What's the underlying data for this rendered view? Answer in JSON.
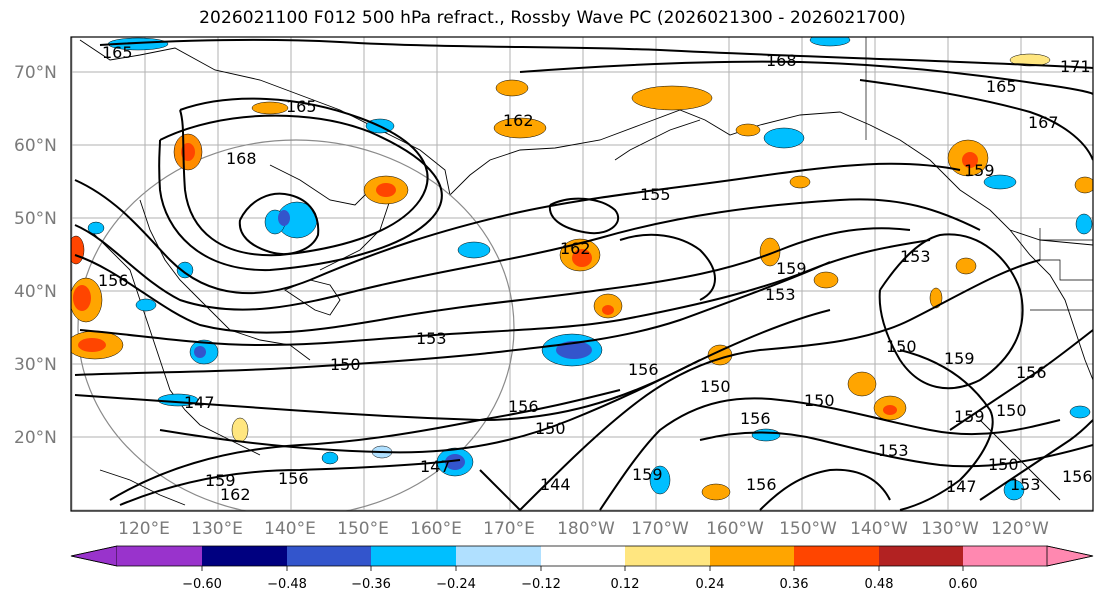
{
  "title": "2026021100 F012 500 hPa refract., Rossby Wave PC (2026021300 - 2026021700)",
  "map": {
    "lat_labels": [
      "70°N",
      "60°N",
      "50°N",
      "40°N",
      "30°N",
      "20°N"
    ],
    "lon_labels": [
      "120°E",
      "130°E",
      "140°E",
      "150°E",
      "160°E",
      "170°E",
      "180°W",
      "170°W",
      "160°W",
      "150°W",
      "140°W",
      "130°W",
      "120°W"
    ],
    "contour_labels": [
      "165",
      "168",
      "171",
      "165",
      "162",
      "165",
      "167",
      "168",
      "159",
      "156",
      "162",
      "159",
      "153",
      "153",
      "150",
      "153",
      "147",
      "156",
      "150",
      "156",
      "150",
      "150",
      "156",
      "150",
      "153",
      "159",
      "156",
      "150",
      "150",
      "144",
      "159",
      "147",
      "159",
      "162",
      "156",
      "156",
      "147",
      "153",
      "156",
      "159",
      "155"
    ]
  },
  "colorbar": {
    "colors": [
      "#9933cc",
      "#000080",
      "#3355cc",
      "#00bfff",
      "#b0e0ff",
      "#ffffff",
      "#ffe680",
      "#ffa500",
      "#ff4500",
      "#b22222",
      "#ff88b0"
    ],
    "ticks": [
      "−0.60",
      "−0.48",
      "−0.36",
      "−0.24",
      "−0.12",
      "0.12",
      "0.24",
      "0.36",
      "0.48",
      "0.60"
    ]
  }
}
